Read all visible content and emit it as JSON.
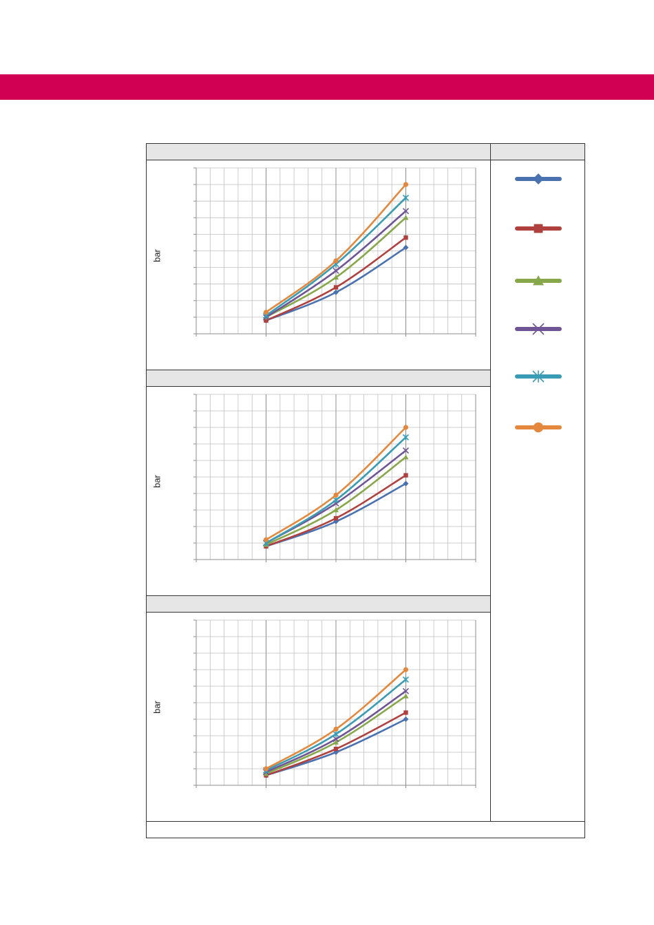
{
  "colors": {
    "brand": "#d20052",
    "header_bg": "#e6e6e6",
    "grid": "#bfbfbf",
    "frame": "#333333"
  },
  "legend": {
    "items": [
      {
        "marker": "diamond",
        "color": "#4a72b0"
      },
      {
        "marker": "square",
        "color": "#b0403e"
      },
      {
        "marker": "triangle",
        "color": "#87a84a"
      },
      {
        "marker": "x",
        "color": "#6f5596"
      },
      {
        "marker": "star",
        "color": "#3a9cb4"
      },
      {
        "marker": "circle",
        "color": "#e3883d"
      }
    ]
  },
  "chart_data": [
    {
      "type": "line",
      "ylabel": "bar",
      "grid": true,
      "xlim": [
        0,
        20
      ],
      "ylim": [
        0,
        10
      ],
      "x": [
        5,
        10,
        15
      ],
      "series": [
        {
          "marker": "diamond",
          "color": "#4a72b0",
          "values": [
            0.8,
            2.5,
            5.2
          ]
        },
        {
          "marker": "square",
          "color": "#b0403e",
          "values": [
            0.8,
            2.8,
            5.8
          ]
        },
        {
          "marker": "triangle",
          "color": "#87a84a",
          "values": [
            1.0,
            3.4,
            7.0
          ]
        },
        {
          "marker": "x",
          "color": "#6f5596",
          "values": [
            1.0,
            3.8,
            7.4
          ]
        },
        {
          "marker": "star",
          "color": "#3a9cb4",
          "values": [
            1.1,
            4.2,
            8.2
          ]
        },
        {
          "marker": "circle",
          "color": "#e3883d",
          "values": [
            1.3,
            4.4,
            9.0
          ]
        }
      ]
    },
    {
      "type": "line",
      "ylabel": "bar",
      "grid": true,
      "xlim": [
        0,
        20
      ],
      "ylim": [
        0,
        10
      ],
      "x": [
        5,
        10,
        15
      ],
      "series": [
        {
          "marker": "diamond",
          "color": "#4a72b0",
          "values": [
            0.8,
            2.3,
            4.6
          ]
        },
        {
          "marker": "square",
          "color": "#b0403e",
          "values": [
            0.8,
            2.5,
            5.1
          ]
        },
        {
          "marker": "triangle",
          "color": "#87a84a",
          "values": [
            0.9,
            3.0,
            6.2
          ]
        },
        {
          "marker": "x",
          "color": "#6f5596",
          "values": [
            1.0,
            3.4,
            6.6
          ]
        },
        {
          "marker": "star",
          "color": "#3a9cb4",
          "values": [
            1.0,
            3.6,
            7.4
          ]
        },
        {
          "marker": "circle",
          "color": "#e3883d",
          "values": [
            1.2,
            3.9,
            8.0
          ]
        }
      ]
    },
    {
      "type": "line",
      "ylabel": "bar",
      "grid": true,
      "xlim": [
        0,
        20
      ],
      "ylim": [
        0,
        10
      ],
      "x": [
        5,
        10,
        15
      ],
      "series": [
        {
          "marker": "diamond",
          "color": "#4a72b0",
          "values": [
            0.6,
            2.0,
            4.0
          ]
        },
        {
          "marker": "square",
          "color": "#b0403e",
          "values": [
            0.6,
            2.2,
            4.4
          ]
        },
        {
          "marker": "triangle",
          "color": "#87a84a",
          "values": [
            0.7,
            2.6,
            5.4
          ]
        },
        {
          "marker": "x",
          "color": "#6f5596",
          "values": [
            0.8,
            2.8,
            5.7
          ]
        },
        {
          "marker": "star",
          "color": "#3a9cb4",
          "values": [
            0.9,
            3.1,
            6.4
          ]
        },
        {
          "marker": "circle",
          "color": "#e3883d",
          "values": [
            1.0,
            3.4,
            7.0
          ]
        }
      ]
    }
  ]
}
